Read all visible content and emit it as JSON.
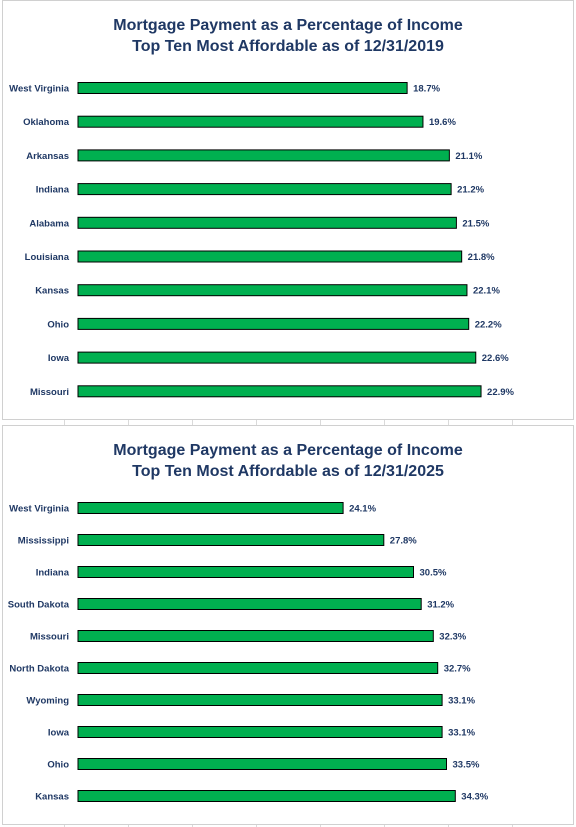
{
  "chart_data": [
    {
      "type": "bar",
      "orientation": "horizontal",
      "title": "Mortgage Payment as a Percentage of Income",
      "subtitle": "Top Ten Most Affordable as of 12/31/2019",
      "categories": [
        "West Virginia",
        "Oklahoma",
        "Arkansas",
        "Indiana",
        "Alabama",
        "Louisiana",
        "Kansas",
        "Ohio",
        "Iowa",
        "Missouri"
      ],
      "values": [
        18.7,
        19.6,
        21.1,
        21.2,
        21.5,
        21.8,
        22.1,
        22.2,
        22.6,
        22.9
      ],
      "data_labels": [
        "18.7%",
        "19.6%",
        "21.1%",
        "21.2%",
        "21.5%",
        "21.8%",
        "22.1%",
        "22.2%",
        "22.6%",
        "22.9%"
      ],
      "xlim": [
        0,
        25
      ],
      "bar_color": "#00b050",
      "bar_edge_color": "#000000",
      "label_color": "#1f3864",
      "grid": false
    },
    {
      "type": "bar",
      "orientation": "horizontal",
      "title": "Mortgage Payment as a Percentage of Income",
      "subtitle": "Top Ten Most Affordable as of 12/31/2025",
      "categories": [
        "West Virginia",
        "Mississippi",
        "Indiana",
        "South Dakota",
        "Missouri",
        "North Dakota",
        "Wyoming",
        "Iowa",
        "Ohio",
        "Kansas"
      ],
      "values": [
        24.1,
        27.8,
        30.5,
        31.2,
        32.3,
        32.7,
        33.1,
        33.1,
        33.5,
        34.3
      ],
      "data_labels": [
        "24.1%",
        "27.8%",
        "30.5%",
        "31.2%",
        "32.3%",
        "32.7%",
        "33.1%",
        "33.1%",
        "33.5%",
        "34.3%"
      ],
      "xlim": [
        0,
        40
      ],
      "bar_color": "#00b050",
      "bar_edge_color": "#000000",
      "label_color": "#1f3864",
      "grid": false
    }
  ]
}
